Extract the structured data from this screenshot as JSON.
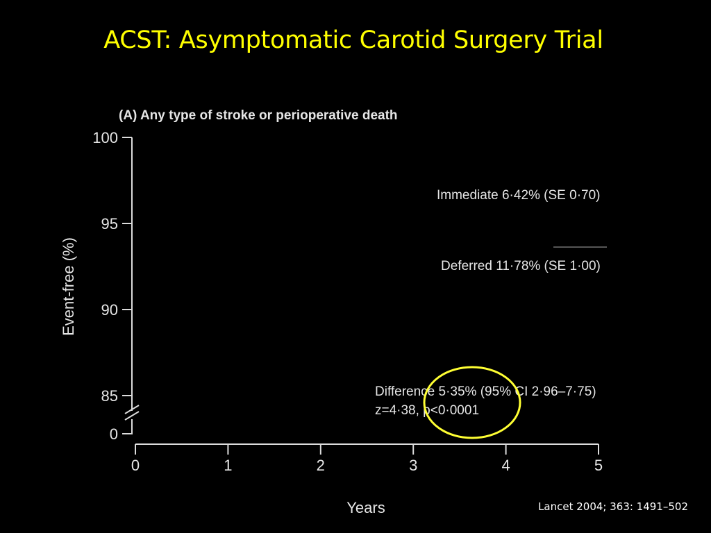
{
  "slide": {
    "title": "ACST: Asymptomatic Carotid Surgery Trial",
    "citation": "Lancet 2004; 363: 1491–502",
    "title_color": "#ffff00",
    "background": "#000000",
    "highlight_color": "#ffff33"
  },
  "chart_data": {
    "type": "line",
    "panel_title": "(A) Any type of stroke or perioperative death",
    "xlabel": "Years",
    "ylabel": "Event-free (%)",
    "xlim": [
      0,
      5
    ],
    "ylim": [
      85,
      100
    ],
    "y_axis_break": true,
    "x_ticks": [
      "0",
      "1",
      "2",
      "3",
      "4",
      "5"
    ],
    "y_ticks": [
      "100",
      "95",
      "90",
      "85",
      "0"
    ],
    "grid": false,
    "series": [],
    "annotations": [
      {
        "id": "immediate",
        "text": "Immediate 6·42% (SE 0·70)"
      },
      {
        "id": "deferred",
        "text": "Deferred 11·78% (SE 1·00)"
      },
      {
        "id": "difference",
        "text": "Difference 5·35% (95% CI 2·96–7·75)"
      },
      {
        "id": "stat",
        "text": "z=4·38, p<0·0001"
      }
    ],
    "highlight": {
      "shape": "ellipse",
      "target": "p-value"
    }
  }
}
